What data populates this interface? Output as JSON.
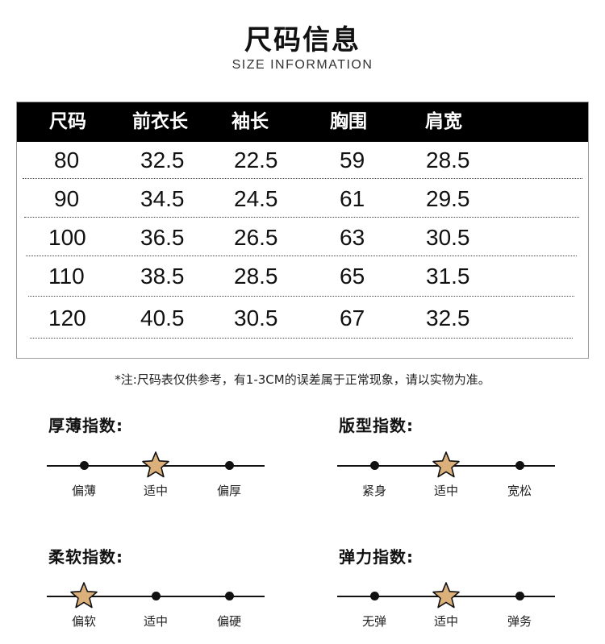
{
  "header": {
    "title": "尺码信息",
    "subtitle": "SIZE INFORMATION"
  },
  "size_table": {
    "columns": [
      "尺码",
      "前衣长",
      "袖长",
      "胸围",
      "肩宽"
    ],
    "rows": [
      [
        "80",
        "32.5",
        "22.5",
        "59",
        "28.5"
      ],
      [
        "90",
        "34.5",
        "24.5",
        "61",
        "29.5"
      ],
      [
        "100",
        "36.5",
        "26.5",
        "63",
        "30.5"
      ],
      [
        "110",
        "38.5",
        "28.5",
        "65",
        "31.5"
      ],
      [
        "120",
        "40.5",
        "30.5",
        "67",
        "32.5"
      ]
    ]
  },
  "note": "*注:尺码表仅供参考，有1-3CM的误差属于正常现象，请以实物为准。",
  "indices": [
    {
      "title": "厚薄指数:",
      "options": [
        "偏薄",
        "适中",
        "偏厚"
      ],
      "selected": 1
    },
    {
      "title": "版型指数:",
      "options": [
        "紧身",
        "适中",
        "宽松"
      ],
      "selected": 1
    },
    {
      "title": "柔软指数:",
      "options": [
        "偏软",
        "适中",
        "偏硬"
      ],
      "selected": 0
    },
    {
      "title": "弹力指数:",
      "options": [
        "无弹",
        "适中",
        "弹务"
      ],
      "selected": 1
    }
  ],
  "colors": {
    "header_bg": "#000000",
    "star_fill": "#dcb07a",
    "star_stroke": "#111111"
  },
  "icons": {
    "selected_marker": "star-icon",
    "option_marker": "dot-icon"
  }
}
